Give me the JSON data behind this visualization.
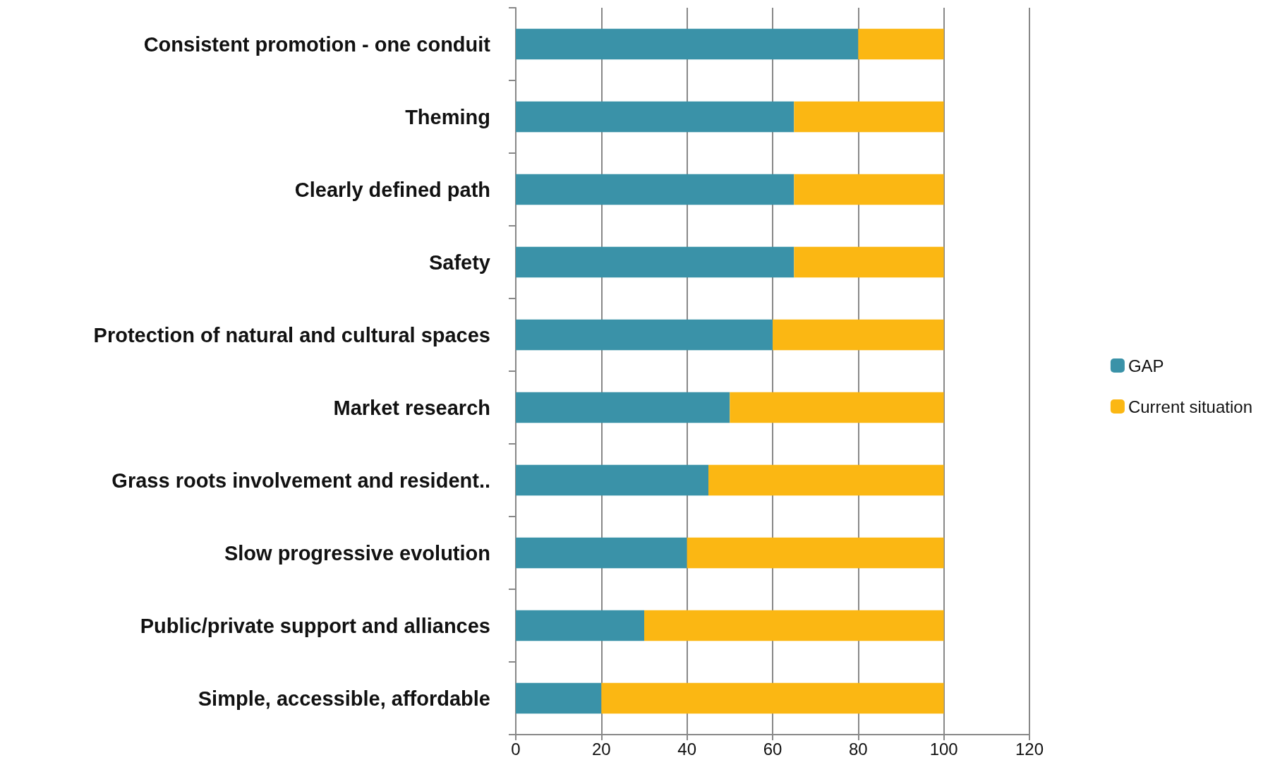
{
  "chart_data": {
    "type": "bar",
    "orientation": "horizontal",
    "stacked": true,
    "categories": [
      "Consistent promotion - one conduit",
      "Theming",
      "Clearly defined path",
      "Safety",
      "Protection of natural and cultural spaces",
      "Market research",
      "Grass roots involvement and resident..",
      "Slow progressive evolution",
      "Public/private support and alliances",
      "Simple, accessible, affordable"
    ],
    "series": [
      {
        "name": "GAP",
        "color": "#3a92a8",
        "values": [
          80,
          65,
          65,
          65,
          60,
          50,
          45,
          40,
          30,
          20
        ]
      },
      {
        "name": "Current situation",
        "color": "#fbb713",
        "values": [
          20,
          35,
          35,
          35,
          40,
          50,
          55,
          60,
          70,
          80
        ]
      }
    ],
    "xlim": [
      0,
      120
    ],
    "xticks": [
      0,
      20,
      40,
      60,
      80,
      100,
      120
    ],
    "grid": "x",
    "legend": "right"
  }
}
